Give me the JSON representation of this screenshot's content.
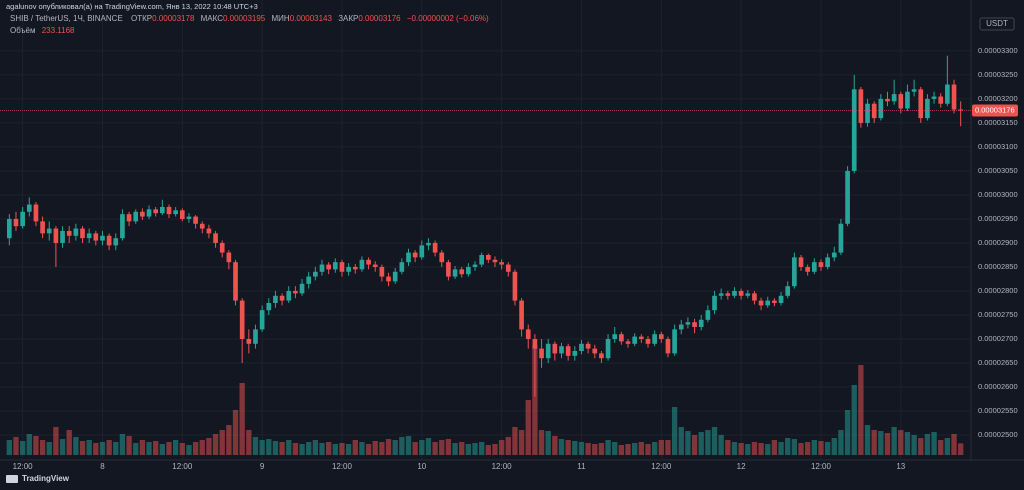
{
  "header": "agalunov опубликовал(а) на TradingView.com, Янв 13, 2022 10:48 UTC+3",
  "legend": {
    "symbol": "SHIB / TetherUS, 1Ч, BINANCE",
    "items": [
      {
        "label": "ОТКР",
        "value": "0.00003178"
      },
      {
        "label": "МАКС",
        "value": "0.00003195"
      },
      {
        "label": "МИН",
        "value": "0.00003143"
      },
      {
        "label": "ЗАКР",
        "value": "0.00003176"
      }
    ],
    "change": "−0.00000002 (−0.06%)",
    "volume_label": "Объём",
    "volume_value": "233.1168"
  },
  "price_tag": "0.00003176",
  "currency": "USDT",
  "footer": "TradingView",
  "chart_data": {
    "type": "candlestick",
    "up_color": "#26a69a",
    "down_color": "#ef5350",
    "ylim": [
      2.448e-05,
      3.406e-05
    ],
    "yticks": [
      {
        "value": 2.5e-05,
        "label": "0.00002500"
      },
      {
        "value": 2.55e-05,
        "label": "0.00002550"
      },
      {
        "value": 2.6e-05,
        "label": "0.00002600"
      },
      {
        "value": 2.65e-05,
        "label": "0.00002650"
      },
      {
        "value": 2.7e-05,
        "label": "0.00002700"
      },
      {
        "value": 2.75e-05,
        "label": "0.00002750"
      },
      {
        "value": 2.8e-05,
        "label": "0.00002800"
      },
      {
        "value": 2.85e-05,
        "label": "0.00002850"
      },
      {
        "value": 2.9e-05,
        "label": "0.00002900"
      },
      {
        "value": 2.95e-05,
        "label": "0.00002950"
      },
      {
        "value": 3e-05,
        "label": "0.00003000"
      },
      {
        "value": 3.05e-05,
        "label": "0.00003050"
      },
      {
        "value": 3.1e-05,
        "label": "0.00003100"
      },
      {
        "value": 3.15e-05,
        "label": "0.00003150"
      },
      {
        "value": 3.2e-05,
        "label": "0.00003200"
      },
      {
        "value": 3.25e-05,
        "label": "0.00003250"
      },
      {
        "value": 3.3e-05,
        "label": "0.00003300"
      }
    ],
    "grid": true,
    "categories": [
      null,
      null,
      "12:00",
      null,
      null,
      null,
      null,
      null,
      null,
      null,
      null,
      null,
      null,
      null,
      "8",
      null,
      null,
      null,
      null,
      null,
      null,
      null,
      null,
      null,
      null,
      null,
      "12:00",
      null,
      null,
      null,
      null,
      null,
      null,
      null,
      null,
      null,
      null,
      null,
      "9",
      null,
      null,
      null,
      null,
      null,
      null,
      null,
      null,
      null,
      null,
      null,
      "12:00",
      null,
      null,
      null,
      null,
      null,
      null,
      null,
      null,
      null,
      null,
      null,
      "10",
      null,
      null,
      null,
      null,
      null,
      null,
      null,
      null,
      null,
      null,
      null,
      "12:00",
      null,
      null,
      null,
      null,
      null,
      null,
      null,
      null,
      null,
      null,
      null,
      "11",
      null,
      null,
      null,
      null,
      null,
      null,
      null,
      null,
      null,
      null,
      null,
      "12:00",
      null,
      null,
      null,
      null,
      null,
      null,
      null,
      null,
      null,
      null,
      null,
      "12",
      null,
      null,
      null,
      null,
      null,
      null,
      null,
      null,
      null,
      null,
      null,
      "12:00",
      null,
      null,
      null,
      null,
      null,
      null,
      null,
      null,
      null,
      null,
      null,
      "13",
      null,
      null,
      null,
      null,
      null,
      null,
      null,
      null,
      null
    ],
    "ohlc": [
      [
        2.91e-05,
        2.96e-05,
        2.895e-05,
        2.95e-05
      ],
      [
        2.95e-05,
        2.965e-05,
        2.925e-05,
        2.935e-05
      ],
      [
        2.935e-05,
        2.975e-05,
        2.93e-05,
        2.965e-05
      ],
      [
        2.965e-05,
        2.995e-05,
        2.955e-05,
        2.98e-05
      ],
      [
        2.98e-05,
        2.985e-05,
        2.935e-05,
        2.945e-05
      ],
      [
        2.945e-05,
        2.955e-05,
        2.91e-05,
        2.92e-05
      ],
      [
        2.92e-05,
        2.945e-05,
        2.905e-05,
        2.93e-05
      ],
      [
        2.93e-05,
        2.935e-05,
        2.85e-05,
        2.9e-05
      ],
      [
        2.9e-05,
        2.935e-05,
        2.89e-05,
        2.925e-05
      ],
      [
        2.925e-05,
        2.935e-05,
        2.9e-05,
        2.915e-05
      ],
      [
        2.915e-05,
        2.94e-05,
        2.905e-05,
        2.93e-05
      ],
      [
        2.93e-05,
        2.935e-05,
        2.9e-05,
        2.91e-05
      ],
      [
        2.91e-05,
        2.93e-05,
        2.9e-05,
        2.92e-05
      ],
      [
        2.92e-05,
        2.925e-05,
        2.895e-05,
        2.905e-05
      ],
      [
        2.905e-05,
        2.925e-05,
        2.895e-05,
        2.915e-05
      ],
      [
        2.915e-05,
        2.92e-05,
        2.885e-05,
        2.895e-05
      ],
      [
        2.895e-05,
        2.92e-05,
        2.885e-05,
        2.91e-05
      ],
      [
        2.91e-05,
        2.97e-05,
        2.905e-05,
        2.96e-05
      ],
      [
        2.96e-05,
        2.965e-05,
        2.935e-05,
        2.945e-05
      ],
      [
        2.945e-05,
        2.97e-05,
        2.94e-05,
        2.965e-05
      ],
      [
        2.965e-05,
        2.972e-05,
        2.948e-05,
        2.955e-05
      ],
      [
        2.955e-05,
        2.978e-05,
        2.95e-05,
        2.97e-05
      ],
      [
        2.97e-05,
        2.975e-05,
        2.955e-05,
        2.962e-05
      ],
      [
        2.962e-05,
        2.99e-05,
        2.958e-05,
        2.975e-05
      ],
      [
        2.975e-05,
        2.98e-05,
        2.952e-05,
        2.96e-05
      ],
      [
        2.96e-05,
        2.975e-05,
        2.955e-05,
        2.968e-05
      ],
      [
        2.968e-05,
        2.972e-05,
        2.945e-05,
        2.95e-05
      ],
      [
        2.95e-05,
        2.962e-05,
        2.942e-05,
        2.955e-05
      ],
      [
        2.955e-05,
        2.958e-05,
        2.93e-05,
        2.94e-05
      ],
      [
        2.94e-05,
        2.945e-05,
        2.92e-05,
        2.93e-05
      ],
      [
        2.93e-05,
        2.938e-05,
        2.91e-05,
        2.92e-05
      ],
      [
        2.92e-05,
        2.925e-05,
        2.89e-05,
        2.9e-05
      ],
      [
        2.9e-05,
        2.905e-05,
        2.87e-05,
        2.88e-05
      ],
      [
        2.88e-05,
        2.885e-05,
        2.845e-05,
        2.86e-05
      ],
      [
        2.86e-05,
        2.865e-05,
        2.77e-05,
        2.78e-05
      ],
      [
        2.78e-05,
        2.785e-05,
        2.65e-05,
        2.7e-05
      ],
      [
        2.7e-05,
        2.72e-05,
        2.67e-05,
        2.69e-05
      ],
      [
        2.69e-05,
        2.73e-05,
        2.68e-05,
        2.72e-05
      ],
      [
        2.72e-05,
        2.77e-05,
        2.715e-05,
        2.76e-05
      ],
      [
        2.76e-05,
        2.785e-05,
        2.75e-05,
        2.775e-05
      ],
      [
        2.775e-05,
        2.8e-05,
        2.765e-05,
        2.79e-05
      ],
      [
        2.79e-05,
        2.795e-05,
        2.77e-05,
        2.78e-05
      ],
      [
        2.78e-05,
        2.81e-05,
        2.775e-05,
        2.8e-05
      ],
      [
        2.8e-05,
        2.81e-05,
        2.785e-05,
        2.795e-05
      ],
      [
        2.795e-05,
        2.825e-05,
        2.79e-05,
        2.815e-05
      ],
      [
        2.815e-05,
        2.84e-05,
        2.805e-05,
        2.83e-05
      ],
      [
        2.83e-05,
        2.85e-05,
        2.822e-05,
        2.84e-05
      ],
      [
        2.84e-05,
        2.865e-05,
        2.832e-05,
        2.855e-05
      ],
      [
        2.855e-05,
        2.86e-05,
        2.835e-05,
        2.845e-05
      ],
      [
        2.845e-05,
        2.868e-05,
        2.838e-05,
        2.86e-05
      ],
      [
        2.86e-05,
        2.865e-05,
        2.83e-05,
        2.84e-05
      ],
      [
        2.84e-05,
        2.858e-05,
        2.832e-05,
        2.85e-05
      ],
      [
        2.85e-05,
        2.856e-05,
        2.836e-05,
        2.845e-05
      ],
      [
        2.845e-05,
        2.872e-05,
        2.84e-05,
        2.865e-05
      ],
      [
        2.865e-05,
        2.87e-05,
        2.845e-05,
        2.855e-05
      ],
      [
        2.855e-05,
        2.862e-05,
        2.84e-05,
        2.85e-05
      ],
      [
        2.85e-05,
        2.855e-05,
        2.82e-05,
        2.83e-05
      ],
      [
        2.83e-05,
        2.838e-05,
        2.81e-05,
        2.82e-05
      ],
      [
        2.82e-05,
        2.848e-05,
        2.815e-05,
        2.84e-05
      ],
      [
        2.84e-05,
        2.868e-05,
        2.835e-05,
        2.86e-05
      ],
      [
        2.86e-05,
        2.888e-05,
        2.852e-05,
        2.88e-05
      ],
      [
        2.88e-05,
        2.885e-05,
        2.86e-05,
        2.87e-05
      ],
      [
        2.87e-05,
        2.905e-05,
        2.865e-05,
        2.895e-05
      ],
      [
        2.895e-05,
        2.91e-05,
        2.885e-05,
        2.9e-05
      ],
      [
        2.9e-05,
        2.905e-05,
        2.872e-05,
        2.88e-05
      ],
      [
        2.88e-05,
        2.885e-05,
        2.85e-05,
        2.86e-05
      ],
      [
        2.86e-05,
        2.865e-05,
        2.822e-05,
        2.83e-05
      ],
      [
        2.83e-05,
        2.852e-05,
        2.825e-05,
        2.845e-05
      ],
      [
        2.845e-05,
        2.85e-05,
        2.828e-05,
        2.835e-05
      ],
      [
        2.835e-05,
        2.858e-05,
        2.83e-05,
        2.85e-05
      ],
      [
        2.85e-05,
        2.862e-05,
        2.842e-05,
        2.855e-05
      ],
      [
        2.855e-05,
        2.88e-05,
        2.85e-05,
        2.875e-05
      ],
      [
        2.875e-05,
        2.878e-05,
        2.858e-05,
        2.865e-05
      ],
      [
        2.865e-05,
        2.872e-05,
        2.85e-05,
        2.86e-05
      ],
      [
        2.86e-05,
        2.866e-05,
        2.845e-05,
        2.855e-05
      ],
      [
        2.855e-05,
        2.86e-05,
        2.83e-05,
        2.84e-05
      ],
      [
        2.84e-05,
        2.845e-05,
        2.77e-05,
        2.78e-05
      ],
      [
        2.78e-05,
        2.785e-05,
        2.705e-05,
        2.72e-05
      ],
      [
        2.72e-05,
        2.73e-05,
        2.68e-05,
        2.7e-05
      ],
      [
        2.7e-05,
        2.71e-05,
        2.58e-05,
        2.68e-05
      ],
      [
        2.68e-05,
        2.7e-05,
        2.64e-05,
        2.66e-05
      ],
      [
        2.66e-05,
        2.7e-05,
        2.65e-05,
        2.69e-05
      ],
      [
        2.69e-05,
        2.695e-05,
        2.655e-05,
        2.67e-05
      ],
      [
        2.67e-05,
        2.692e-05,
        2.66e-05,
        2.685e-05
      ],
      [
        2.685e-05,
        2.69e-05,
        2.655e-05,
        2.665e-05
      ],
      [
        2.665e-05,
        2.685e-05,
        2.655e-05,
        2.675e-05
      ],
      [
        2.675e-05,
        2.698e-05,
        2.668e-05,
        2.69e-05
      ],
      [
        2.69e-05,
        2.695e-05,
        2.67e-05,
        2.68e-05
      ],
      [
        2.68e-05,
        2.688e-05,
        2.66e-05,
        2.67e-05
      ],
      [
        2.67e-05,
        2.675e-05,
        2.65e-05,
        2.66e-05
      ],
      [
        2.66e-05,
        2.71e-05,
        2.655e-05,
        2.7e-05
      ],
      [
        2.7e-05,
        2.725e-05,
        2.692e-05,
        2.71e-05
      ],
      [
        2.71e-05,
        2.715e-05,
        2.688e-05,
        2.695e-05
      ],
      [
        2.695e-05,
        2.7e-05,
        2.682e-05,
        2.69e-05
      ],
      [
        2.69e-05,
        2.712e-05,
        2.685e-05,
        2.705e-05
      ],
      [
        2.705e-05,
        2.71e-05,
        2.692e-05,
        2.7e-05
      ],
      [
        2.7e-05,
        2.706e-05,
        2.682e-05,
        2.69e-05
      ],
      [
        2.69e-05,
        2.718e-05,
        2.685e-05,
        2.71e-05
      ],
      [
        2.71e-05,
        2.715e-05,
        2.692e-05,
        2.7e-05
      ],
      [
        2.7e-05,
        2.705e-05,
        2.662e-05,
        2.67e-05
      ],
      [
        2.67e-05,
        2.73e-05,
        2.665e-05,
        2.72e-05
      ],
      [
        2.72e-05,
        2.74e-05,
        2.71e-05,
        2.73e-05
      ],
      [
        2.73e-05,
        2.745e-05,
        2.722e-05,
        2.735e-05
      ],
      [
        2.735e-05,
        2.742e-05,
        2.712e-05,
        2.725e-05
      ],
      [
        2.725e-05,
        2.75e-05,
        2.718e-05,
        2.74e-05
      ],
      [
        2.74e-05,
        2.77e-05,
        2.735e-05,
        2.76e-05
      ],
      [
        2.76e-05,
        2.8e-05,
        2.752e-05,
        2.79e-05
      ],
      [
        2.79e-05,
        2.805e-05,
        2.782e-05,
        2.795e-05
      ],
      [
        2.795e-05,
        2.8e-05,
        2.782e-05,
        2.79e-05
      ],
      [
        2.79e-05,
        2.808e-05,
        2.785e-05,
        2.8e-05
      ],
      [
        2.8e-05,
        2.805e-05,
        2.782e-05,
        2.79e-05
      ],
      [
        2.79e-05,
        2.802e-05,
        2.785e-05,
        2.795e-05
      ],
      [
        2.795e-05,
        2.8e-05,
        2.772e-05,
        2.78e-05
      ],
      [
        2.78e-05,
        2.786e-05,
        2.76e-05,
        2.77e-05
      ],
      [
        2.77e-05,
        2.788e-05,
        2.765e-05,
        2.78e-05
      ],
      [
        2.78e-05,
        2.785e-05,
        2.768e-05,
        2.775e-05
      ],
      [
        2.775e-05,
        2.798e-05,
        2.77e-05,
        2.79e-05
      ],
      [
        2.79e-05,
        2.82e-05,
        2.785e-05,
        2.81e-05
      ],
      [
        2.81e-05,
        2.88e-05,
        2.805e-05,
        2.87e-05
      ],
      [
        2.87e-05,
        2.875e-05,
        2.842e-05,
        2.85e-05
      ],
      [
        2.85e-05,
        2.855e-05,
        2.832e-05,
        2.84e-05
      ],
      [
        2.84e-05,
        2.868e-05,
        2.835e-05,
        2.86e-05
      ],
      [
        2.86e-05,
        2.866e-05,
        2.842e-05,
        2.85e-05
      ],
      [
        2.85e-05,
        2.878e-05,
        2.845e-05,
        2.87e-05
      ],
      [
        2.87e-05,
        2.892e-05,
        2.862e-05,
        2.88e-05
      ],
      [
        2.88e-05,
        2.95e-05,
        2.875e-05,
        2.94e-05
      ],
      [
        2.94e-05,
        3.06e-05,
        2.935e-05,
        3.05e-05
      ],
      [
        3.05e-05,
        3.25e-05,
        3.045e-05,
        3.22e-05
      ],
      [
        3.22e-05,
        3.225e-05,
        3.14e-05,
        3.15e-05
      ],
      [
        3.15e-05,
        3.2e-05,
        3.142e-05,
        3.19e-05
      ],
      [
        3.19e-05,
        3.195e-05,
        3.15e-05,
        3.16e-05
      ],
      [
        3.16e-05,
        3.21e-05,
        3.155e-05,
        3.2e-05
      ],
      [
        3.2e-05,
        3.215e-05,
        3.185e-05,
        3.195e-05
      ],
      [
        3.195e-05,
        3.24e-05,
        3.188e-05,
        3.21e-05
      ],
      [
        3.21e-05,
        3.215e-05,
        3.17e-05,
        3.18e-05
      ],
      [
        3.18e-05,
        3.23e-05,
        3.175e-05,
        3.215e-05
      ],
      [
        3.215e-05,
        3.24e-05,
        3.205e-05,
        3.22e-05
      ],
      [
        3.22e-05,
        3.225e-05,
        3.15e-05,
        3.16e-05
      ],
      [
        3.16e-05,
        3.21e-05,
        3.155e-05,
        3.2e-05
      ],
      [
        3.2e-05,
        3.215e-05,
        3.19e-05,
        3.205e-05
      ],
      [
        3.205e-05,
        3.212e-05,
        3.182e-05,
        3.19e-05
      ],
      [
        3.19e-05,
        3.29e-05,
        3.185e-05,
        3.23e-05
      ],
      [
        3.23e-05,
        3.24e-05,
        3.17e-05,
        3.178e-05
      ],
      [
        3.178e-05,
        3.195e-05,
        3.143e-05,
        3.176e-05
      ]
    ],
    "volumes": [
      300,
      360,
      280,
      420,
      380,
      300,
      260,
      560,
      320,
      500,
      360,
      280,
      300,
      240,
      260,
      300,
      260,
      420,
      380,
      240,
      300,
      260,
      280,
      220,
      260,
      300,
      240,
      200,
      260,
      300,
      340,
      420,
      500,
      600,
      900,
      1440,
      500,
      360,
      300,
      320,
      280,
      260,
      300,
      240,
      220,
      260,
      300,
      240,
      260,
      220,
      240,
      220,
      300,
      260,
      220,
      280,
      260,
      320,
      300,
      360,
      380,
      260,
      300,
      340,
      260,
      300,
      320,
      240,
      260,
      220,
      240,
      260,
      200,
      220,
      300,
      360,
      560,
      500,
      1100,
      2200,
      500,
      480,
      380,
      320,
      300,
      280,
      260,
      240,
      220,
      240,
      300,
      260,
      200,
      220,
      240,
      260,
      220,
      260,
      300,
      300,
      960,
      560,
      480,
      400,
      460,
      500,
      560,
      400,
      300,
      260,
      240,
      220,
      260,
      240,
      220,
      300,
      260,
      340,
      320,
      240,
      260,
      300,
      280,
      260,
      340,
      500,
      900,
      1400,
      1800,
      600,
      500,
      480,
      440,
      560,
      500,
      460,
      400,
      340,
      420,
      460,
      300,
      340,
      420,
      233.1168
    ]
  }
}
